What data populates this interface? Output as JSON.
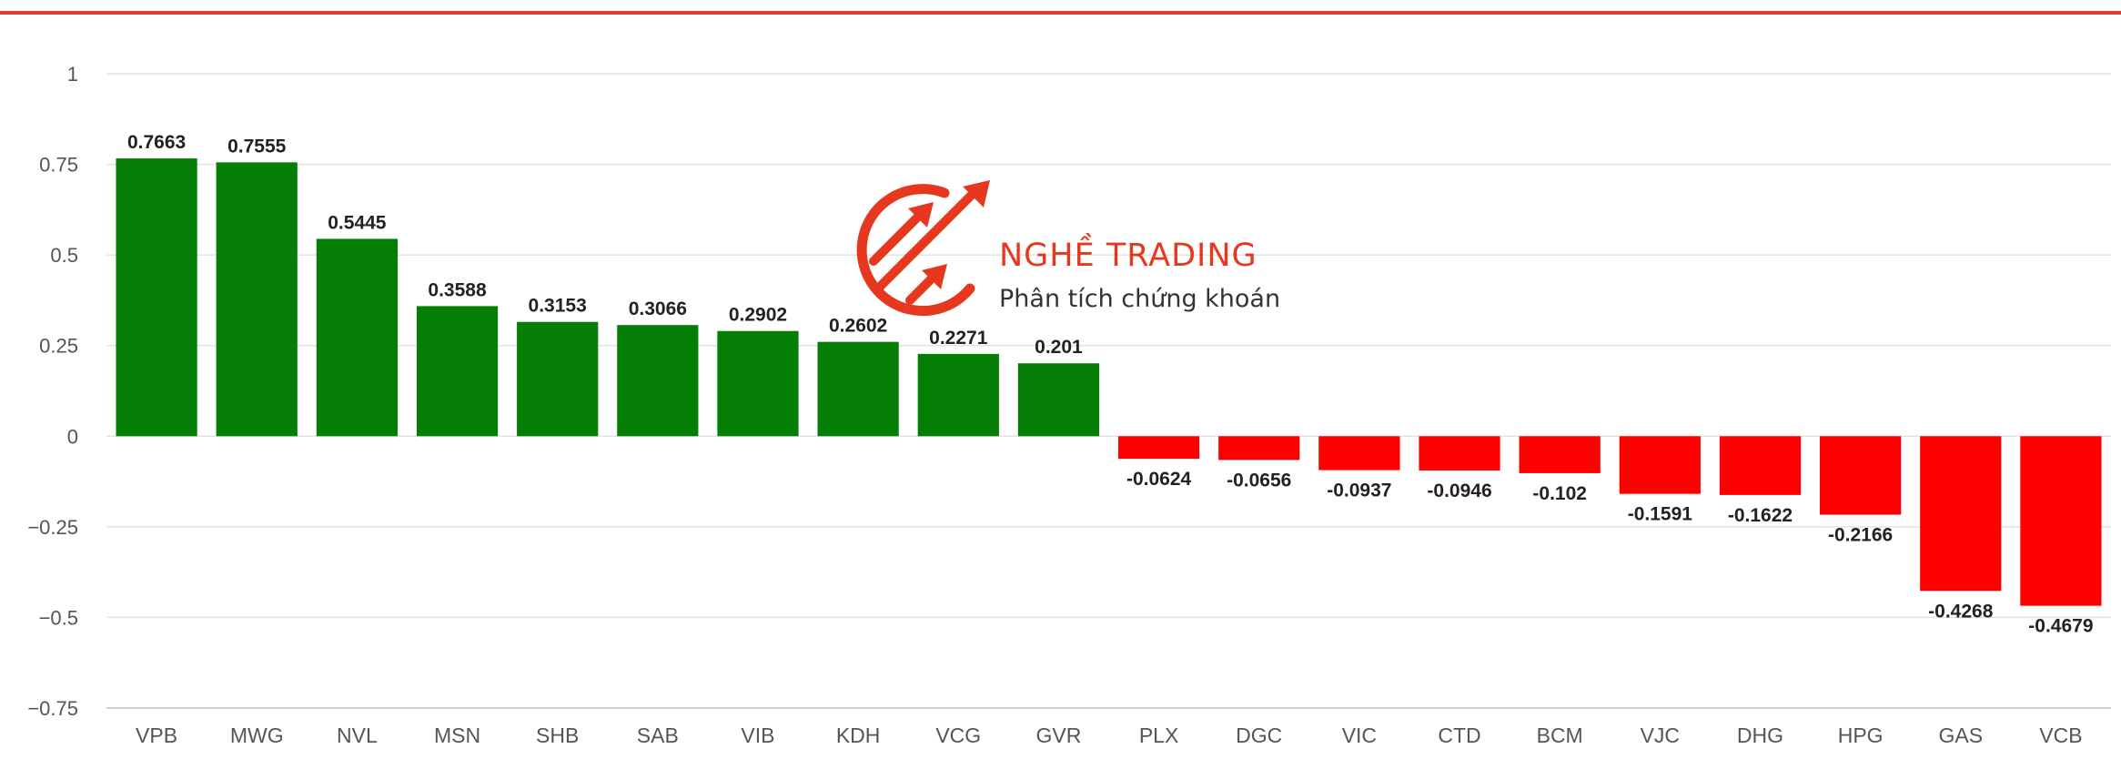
{
  "watermark": {
    "title": "NGHỀ TRADING",
    "subtitle": "Phân tích chứng khoán",
    "accent_color": "#e5381f"
  },
  "chart_data": {
    "type": "bar",
    "title": "",
    "xlabel": "",
    "ylabel": "",
    "ylim": [
      -0.75,
      1
    ],
    "yticks": [
      "1",
      "0.75",
      "0.5",
      "0.25",
      "0",
      "−0.25",
      "−0.5",
      "−0.75"
    ],
    "ytick_values": [
      1,
      0.75,
      0.5,
      0.25,
      0,
      -0.25,
      -0.5,
      -0.75
    ],
    "grid": true,
    "positive_color": "#057e05",
    "negative_color": "#ff0000",
    "categories": [
      "VPB",
      "MWG",
      "NVL",
      "MSN",
      "SHB",
      "SAB",
      "VIB",
      "KDH",
      "VCG",
      "GVR",
      "PLX",
      "DGC",
      "VIC",
      "CTD",
      "BCM",
      "VJC",
      "DHG",
      "HPG",
      "GAS",
      "VCB"
    ],
    "values": [
      0.7663,
      0.7555,
      0.5445,
      0.3588,
      0.3153,
      0.3066,
      0.2902,
      0.2602,
      0.2271,
      0.201,
      -0.0624,
      -0.0656,
      -0.0937,
      -0.0946,
      -0.102,
      -0.1591,
      -0.1622,
      -0.2166,
      -0.4268,
      -0.4679
    ],
    "data_labels": [
      "0.7663",
      "0.7555",
      "0.5445",
      "0.3588",
      "0.3153",
      "0.3066",
      "0.2902",
      "0.2602",
      "0.2271",
      "0.201",
      "-0.0624",
      "-0.0656",
      "-0.0937",
      "-0.0946",
      "-0.102",
      "-0.1591",
      "-0.1622",
      "-0.2166",
      "-0.4268",
      "-0.4679"
    ]
  }
}
